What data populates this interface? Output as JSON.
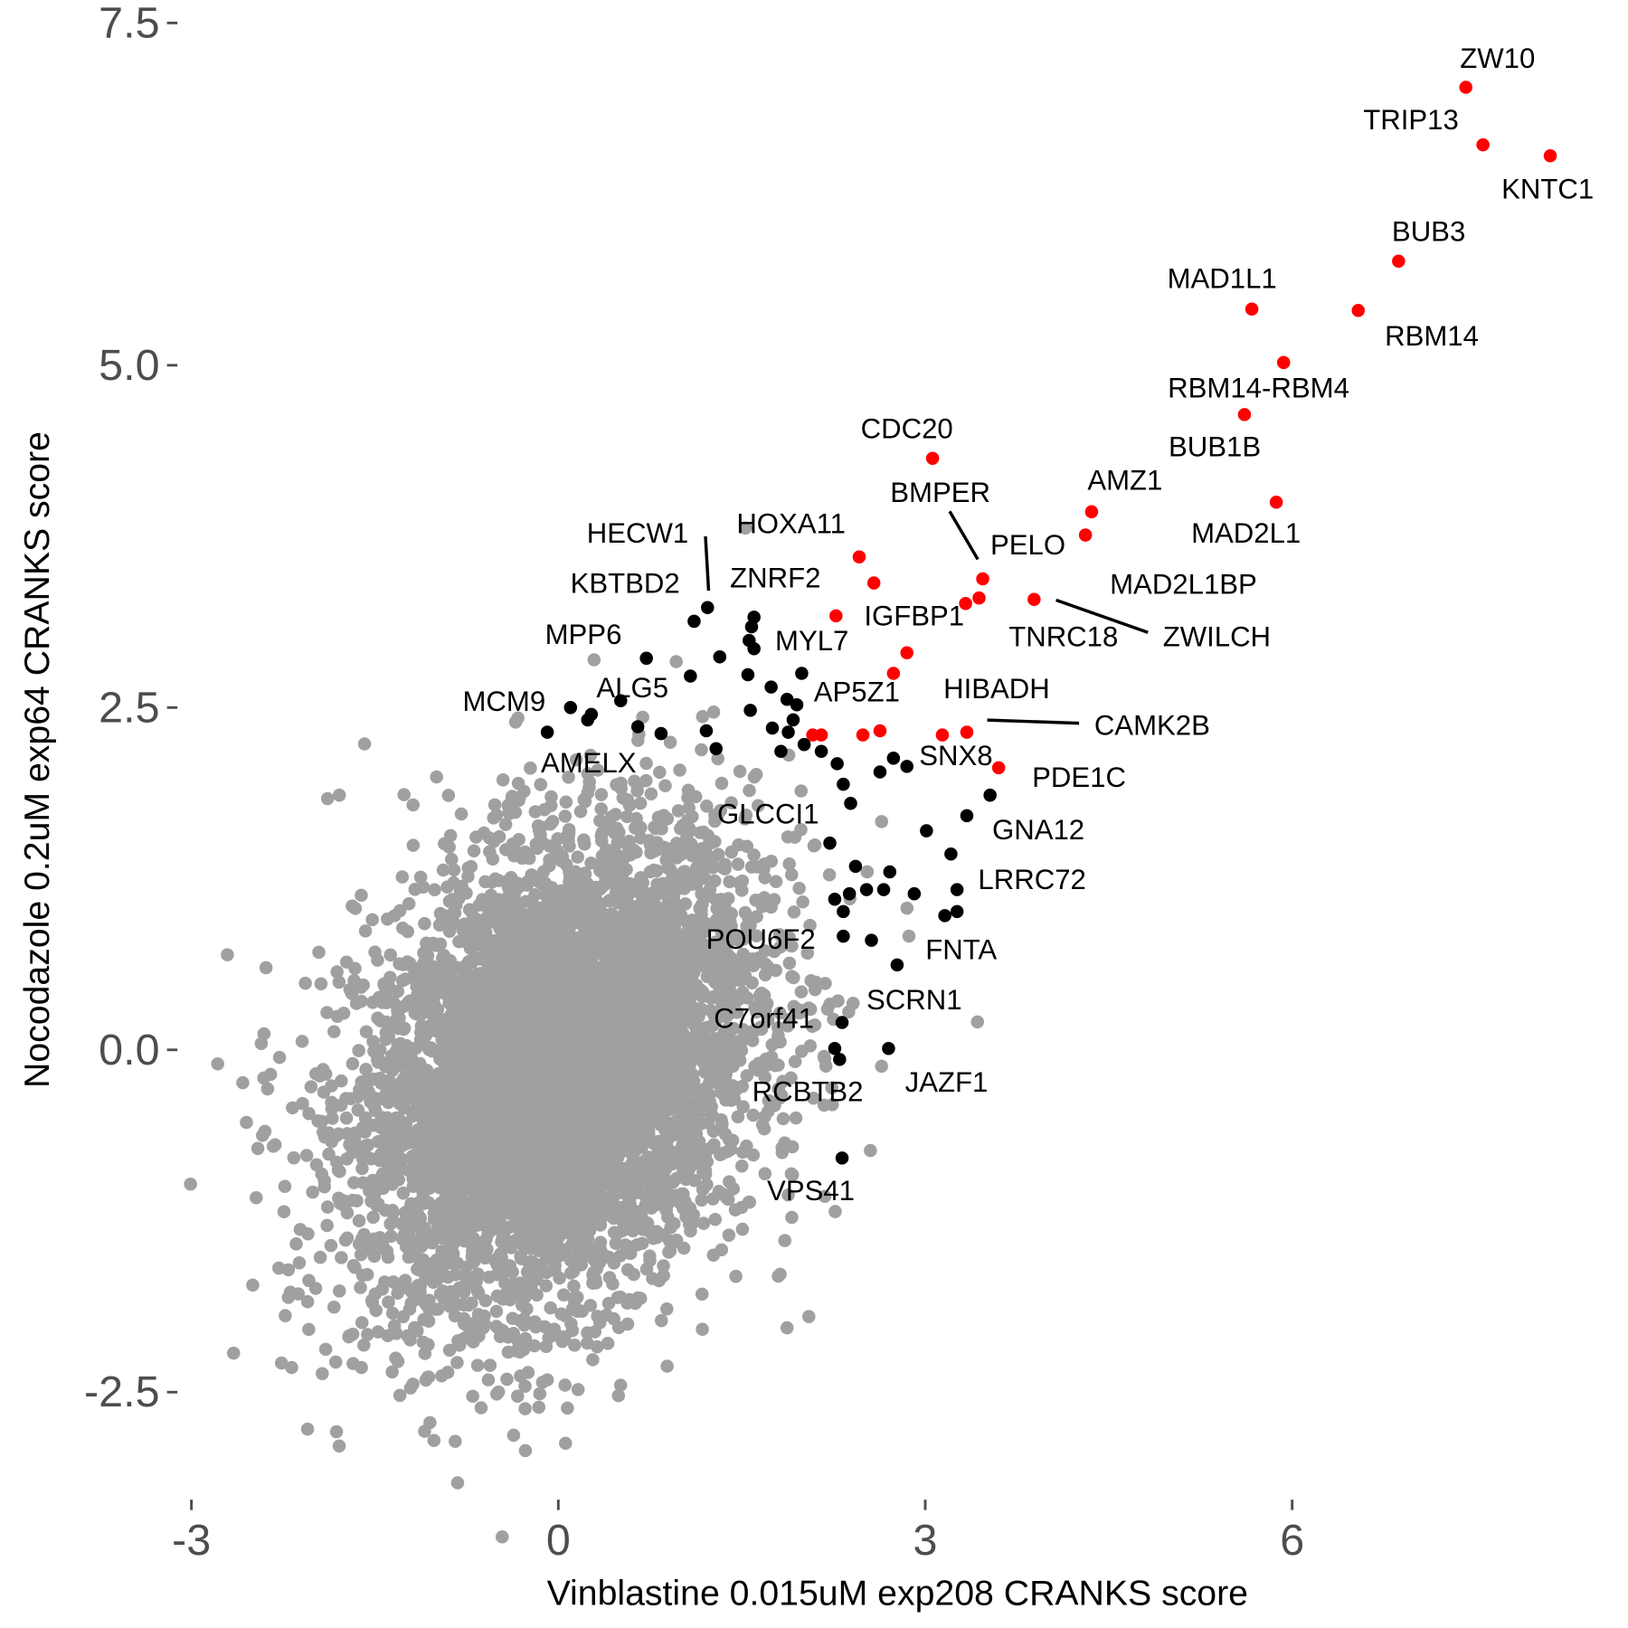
{
  "chart_data": {
    "type": "scatter",
    "xlabel": "Vinblastine 0.015uM exp208 CRANKS score",
    "ylabel": "Nocodazole 0.2uM exp64 CRANKS score",
    "xlim": [
      -3.1,
      8.5
    ],
    "ylim": [
      -3.2,
      7.7
    ],
    "x_ticks": [
      "-3",
      "0",
      "3",
      "6"
    ],
    "x_tick_values": [
      -3,
      0,
      3,
      6
    ],
    "y_ticks": [
      "7.5",
      "5.0",
      "2.5",
      "0.0",
      "-2.5"
    ],
    "y_tick_values": [
      7.5,
      5.0,
      2.5,
      0.0,
      -2.5
    ],
    "grid": false,
    "colors": {
      "background_points": "#a0a0a0",
      "hit_points": "#000000",
      "top_hits": "#ff0000"
    },
    "top_hits": [
      {
        "label": "ZW10",
        "x": 7.42,
        "y": 7.03
      },
      {
        "label": "TRIP13",
        "x": 7.56,
        "y": 6.61
      },
      {
        "label": "KNTC1",
        "x": 8.11,
        "y": 6.53
      },
      {
        "label": "BUB3",
        "x": 6.87,
        "y": 5.76
      },
      {
        "label": "MAD1L1",
        "x": 5.67,
        "y": 5.41
      },
      {
        "label": "RBM14",
        "x": 6.54,
        "y": 5.4
      },
      {
        "label": "RBM14-RBM4",
        "x": 5.93,
        "y": 5.02
      },
      {
        "label": "BUB1B",
        "x": 5.61,
        "y": 4.64
      },
      {
        "label": "MAD2L1",
        "x": 5.87,
        "y": 4.0
      },
      {
        "label": "AMZ1",
        "x": 4.36,
        "y": 3.93
      },
      {
        "label": "MAD2L1BP",
        "x": 4.31,
        "y": 3.76
      },
      {
        "label": "CDC20",
        "x": 3.06,
        "y": 4.32
      },
      {
        "label": "BMPER",
        "x": 3.47,
        "y": 3.44
      },
      {
        "label": "PELO",
        "x": 3.44,
        "y": 3.3
      },
      {
        "label": "TNRC18",
        "x": 3.33,
        "y": 3.26
      },
      {
        "label": "ZWILCH",
        "x": 3.89,
        "y": 3.29
      },
      {
        "label": "HOXA11",
        "x": 2.46,
        "y": 3.6
      },
      {
        "label": "ZNRF2",
        "x": 2.58,
        "y": 3.41
      },
      {
        "label": "IGFBP1",
        "x": 2.27,
        "y": 3.17
      },
      {
        "label": "HIBADH",
        "x": 3.14,
        "y": 2.3
      },
      {
        "label": "CAMK2B",
        "x": 3.34,
        "y": 2.32
      },
      {
        "label": "AP5Z1",
        "x": 2.63,
        "y": 2.33
      },
      {
        "label": "PDE1C",
        "x": 3.6,
        "y": 2.06
      },
      {
        "label": "",
        "x": 2.85,
        "y": 2.9
      },
      {
        "label": "",
        "x": 2.74,
        "y": 2.75
      },
      {
        "label": "",
        "x": 2.49,
        "y": 2.3
      },
      {
        "label": "",
        "x": 2.08,
        "y": 2.3
      },
      {
        "label": "",
        "x": 2.15,
        "y": 2.3
      }
    ],
    "hits": [
      {
        "label": "HECW1",
        "x": 1.22,
        "y": 3.23
      },
      {
        "label": "KBTBD2",
        "x": 1.11,
        "y": 3.13
      },
      {
        "label": "MPP6",
        "x": 0.72,
        "y": 2.86
      },
      {
        "label": "ALG5",
        "x": 0.51,
        "y": 2.55
      },
      {
        "label": "MCM9",
        "x": 0.1,
        "y": 2.5
      },
      {
        "label": "AMELX",
        "x": -0.09,
        "y": 2.32
      },
      {
        "label": "MYL7",
        "x": 1.6,
        "y": 2.93
      },
      {
        "label": "GLCCI1",
        "x": 2.22,
        "y": 1.51
      },
      {
        "label": "POU6F2",
        "x": 2.33,
        "y": 0.83
      },
      {
        "label": "SNX8",
        "x": 2.74,
        "y": 2.13
      },
      {
        "label": "GNA12",
        "x": 3.34,
        "y": 1.71
      },
      {
        "label": "LRRC72",
        "x": 3.26,
        "y": 1.17
      },
      {
        "label": "FNTA",
        "x": 2.77,
        "y": 0.62
      },
      {
        "label": "SCRN1",
        "x": 2.32,
        "y": 0.2
      },
      {
        "label": "C7orf41",
        "x": 2.26,
        "y": 0.01
      },
      {
        "label": "JAZF1",
        "x": 2.7,
        "y": 0.01
      },
      {
        "label": "RCBTB2",
        "x": 2.3,
        "y": -0.07
      },
      {
        "label": "VPS41",
        "x": 2.32,
        "y": -0.79
      },
      {
        "label": "",
        "x": 1.6,
        "y": 3.16
      },
      {
        "label": "",
        "x": 1.58,
        "y": 3.09
      },
      {
        "label": "",
        "x": 1.56,
        "y": 2.99
      },
      {
        "label": "",
        "x": 1.32,
        "y": 2.87
      },
      {
        "label": "",
        "x": 1.08,
        "y": 2.73
      },
      {
        "label": "",
        "x": 1.55,
        "y": 2.74
      },
      {
        "label": "",
        "x": 1.74,
        "y": 2.65
      },
      {
        "label": "",
        "x": 1.99,
        "y": 2.75
      },
      {
        "label": "",
        "x": 1.87,
        "y": 2.56
      },
      {
        "label": "",
        "x": 1.95,
        "y": 2.52
      },
      {
        "label": "",
        "x": 1.92,
        "y": 2.41
      },
      {
        "label": "",
        "x": 1.88,
        "y": 2.32
      },
      {
        "label": "",
        "x": 1.75,
        "y": 2.35
      },
      {
        "label": "",
        "x": 1.57,
        "y": 2.48
      },
      {
        "label": "",
        "x": 1.21,
        "y": 2.33
      },
      {
        "label": "",
        "x": 0.84,
        "y": 2.31
      },
      {
        "label": "",
        "x": 0.65,
        "y": 2.36
      },
      {
        "label": "",
        "x": 0.24,
        "y": 2.41
      },
      {
        "label": "",
        "x": 0.27,
        "y": 2.45
      },
      {
        "label": "",
        "x": 1.29,
        "y": 2.2
      },
      {
        "label": "",
        "x": 1.82,
        "y": 2.18
      },
      {
        "label": "",
        "x": 2.01,
        "y": 2.23
      },
      {
        "label": "",
        "x": 2.15,
        "y": 2.18
      },
      {
        "label": "",
        "x": 2.28,
        "y": 2.09
      },
      {
        "label": "",
        "x": 2.33,
        "y": 1.94
      },
      {
        "label": "",
        "x": 2.39,
        "y": 1.8
      },
      {
        "label": "",
        "x": 2.63,
        "y": 2.03
      },
      {
        "label": "",
        "x": 2.85,
        "y": 2.07
      },
      {
        "label": "",
        "x": 3.53,
        "y": 1.86
      },
      {
        "label": "",
        "x": 3.01,
        "y": 1.6
      },
      {
        "label": "",
        "x": 3.21,
        "y": 1.43
      },
      {
        "label": "",
        "x": 2.43,
        "y": 1.34
      },
      {
        "label": "",
        "x": 2.71,
        "y": 1.3
      },
      {
        "label": "",
        "x": 2.38,
        "y": 1.14
      },
      {
        "label": "",
        "x": 2.26,
        "y": 1.1
      },
      {
        "label": "",
        "x": 2.52,
        "y": 1.17
      },
      {
        "label": "",
        "x": 2.66,
        "y": 1.17
      },
      {
        "label": "",
        "x": 2.91,
        "y": 1.14
      },
      {
        "label": "",
        "x": 3.16,
        "y": 0.98
      },
      {
        "label": "",
        "x": 3.26,
        "y": 1.01
      },
      {
        "label": "",
        "x": 2.33,
        "y": 1.01
      },
      {
        "label": "",
        "x": 2.56,
        "y": 0.8
      }
    ],
    "background_outliers": [
      {
        "x": -1.79,
        "y": 1.86
      },
      {
        "x": -2.39,
        "y": 0.6
      },
      {
        "x": -2.58,
        "y": -0.24
      },
      {
        "x": -2.55,
        "y": -0.53
      },
      {
        "x": -2.47,
        "y": -1.08
      },
      {
        "x": -2.05,
        "y": -2.77
      },
      {
        "x": -2.18,
        "y": -2.32
      },
      {
        "x": -1.82,
        "y": -2.28
      },
      {
        "x": -1.61,
        "y": -2.32
      },
      {
        "x": -0.7,
        "y": -2.53
      },
      {
        "x": -0.09,
        "y": -2.41
      },
      {
        "x": 0.89,
        "y": -2.31
      },
      {
        "x": 1.87,
        "y": -2.03
      },
      {
        "x": 1.88,
        "y": -1.06
      },
      {
        "x": 1.83,
        "y": -0.75
      },
      {
        "x": 2.24,
        "y": -0.4
      },
      {
        "x": 2.41,
        "y": 0.34
      },
      {
        "x": 1.98,
        "y": 0.29
      },
      {
        "x": 2.09,
        "y": 1.49
      }
    ],
    "background_distribution": {
      "center": [
        0.0,
        -0.15
      ],
      "sd": [
        0.8,
        0.85
      ],
      "correlation": 0.3
    }
  }
}
